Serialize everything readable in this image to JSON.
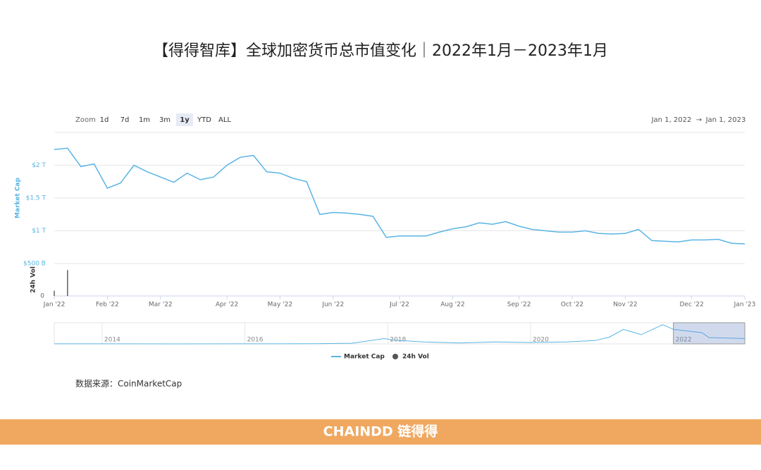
{
  "chart_data": [
    {
      "type": "line",
      "title": "【得得智库】全球加密货币总市值变化｜2022年1月－2023年1月",
      "x": [
        "Jan '22",
        null,
        null,
        null,
        "Feb '22",
        null,
        null,
        null,
        "Mar '22",
        null,
        null,
        null,
        null,
        "Apr '22",
        null,
        null,
        null,
        "May '22",
        null,
        null,
        null,
        "Jun '22",
        null,
        null,
        null,
        null,
        "Jul '22",
        null,
        null,
        null,
        "Aug '22",
        null,
        null,
        null,
        null,
        "Sep '22",
        null,
        null,
        null,
        "Oct '22",
        null,
        null,
        null,
        "Nov '22",
        null,
        null,
        null,
        null,
        "Dec '22",
        null,
        null,
        null,
        "Jan '23"
      ],
      "series": [
        {
          "name": "Market Cap",
          "color": "#5ab4e5",
          "values": [
            2.24,
            2.26,
            1.98,
            2.02,
            1.65,
            1.73,
            2.0,
            1.9,
            1.82,
            1.74,
            1.88,
            1.78,
            1.82,
            2.0,
            2.12,
            2.15,
            1.9,
            1.88,
            1.8,
            1.75,
            1.25,
            1.28,
            1.27,
            1.25,
            1.22,
            0.9,
            0.92,
            0.92,
            0.92,
            0.98,
            1.03,
            1.06,
            1.12,
            1.1,
            1.14,
            1.07,
            1.02,
            1.0,
            0.98,
            0.98,
            1.0,
            0.96,
            0.95,
            0.96,
            1.02,
            0.85,
            0.84,
            0.83,
            0.86,
            0.86,
            0.87,
            0.81,
            0.8
          ]
        },
        {
          "name": "24h Vol",
          "color": "#555555",
          "type": "bar",
          "axis": "y2",
          "values": [
            40,
            200,
            null,
            null,
            null,
            null,
            null,
            null,
            null,
            null,
            null,
            null,
            null,
            null,
            null,
            null,
            null,
            null,
            null,
            null,
            null,
            null,
            null,
            null,
            null,
            null,
            null,
            null,
            null,
            null,
            null,
            null,
            null,
            null,
            null,
            null,
            null,
            null,
            null,
            null,
            null,
            null,
            null,
            null,
            null,
            null,
            null,
            null,
            null,
            null,
            null,
            null,
            null
          ]
        }
      ],
      "ylim": [
        0.5,
        2.5
      ],
      "yticks": [
        {
          "value": 0.5,
          "label": "$500 B"
        },
        {
          "value": 1,
          "label": "$1 T"
        },
        {
          "value": 1.5,
          "label": "$1.5 T"
        },
        {
          "value": 2,
          "label": "$2 T"
        }
      ],
      "y2lim": [
        0,
        250
      ],
      "y2ticks": [
        0
      ],
      "ylabel": "Market Cap",
      "y2label": "24h Vol",
      "grid": true
    },
    {
      "type": "line",
      "x": [
        2013.33,
        2014,
        2015,
        2016,
        2017,
        2017.5,
        2017.95,
        2018.1,
        2018.5,
        2019,
        2019.5,
        2020,
        2020.5,
        2020.9,
        2021.1,
        2021.3,
        2021.55,
        2021.85,
        2022,
        2022.4,
        2022.5,
        2022.85,
        2023
      ],
      "values": [
        0.01,
        0.01,
        0.005,
        0.01,
        0.02,
        0.1,
        0.8,
        0.55,
        0.3,
        0.13,
        0.3,
        0.2,
        0.3,
        0.5,
        1.0,
        2.2,
        1.4,
        2.9,
        2.2,
        1.7,
        0.95,
        0.85,
        0.8
      ],
      "color": "#5ab4e5",
      "xlim": [
        2013.33,
        2023
      ],
      "xticks": [
        2014,
        2016,
        2018,
        2020,
        2022
      ],
      "ylim": [
        0,
        3.2
      ],
      "selection": [
        2022,
        2023
      ]
    }
  ],
  "zoom": {
    "label": "Zoom",
    "buttons": [
      "1d",
      "7d",
      "1m",
      "3m",
      "1y",
      "YTD",
      "ALL"
    ],
    "active": "1y"
  },
  "range": {
    "from": "Jan 1, 2022",
    "arrow": "→",
    "to": "Jan 1, 2023"
  },
  "source": "数据来源：CoinMarketCap",
  "footer": "CHAINDD 链得得"
}
